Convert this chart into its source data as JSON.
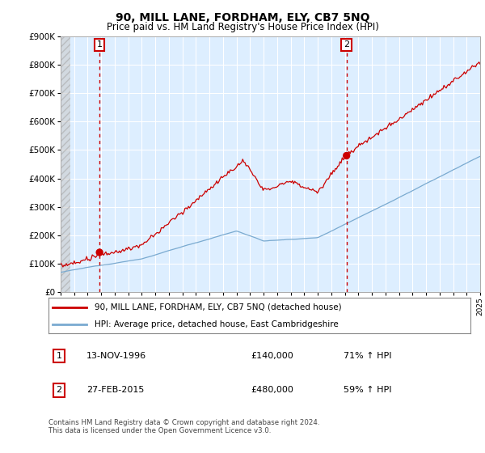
{
  "title": "90, MILL LANE, FORDHAM, ELY, CB7 5NQ",
  "subtitle": "Price paid vs. HM Land Registry's House Price Index (HPI)",
  "title_fontsize": 10,
  "subtitle_fontsize": 8.5,
  "background_color": "#ffffff",
  "plot_bg_color": "#ddeeff",
  "grid_color": "#ffffff",
  "line_color_red": "#cc0000",
  "line_color_blue": "#7aaad0",
  "sale1_x": 1996.875,
  "sale1_price": 140000,
  "sale2_x": 2015.125,
  "sale2_price": 480000,
  "ylim": [
    0,
    900000
  ],
  "yticks": [
    0,
    100000,
    200000,
    300000,
    400000,
    500000,
    600000,
    700000,
    800000,
    900000
  ],
  "ytick_labels": [
    "£0",
    "£100K",
    "£200K",
    "£300K",
    "£400K",
    "£500K",
    "£600K",
    "£700K",
    "£800K",
    "£900K"
  ],
  "legend_label_red": "90, MILL LANE, FORDHAM, ELY, CB7 5NQ (detached house)",
  "legend_label_blue": "HPI: Average price, detached house, East Cambridgeshire",
  "table_row1": [
    "1",
    "13-NOV-1996",
    "£140,000",
    "71% ↑ HPI"
  ],
  "table_row2": [
    "2",
    "27-FEB-2015",
    "£480,000",
    "59% ↑ HPI"
  ],
  "footnote": "Contains HM Land Registry data © Crown copyright and database right 2024.\nThis data is licensed under the Open Government Licence v3.0.",
  "xstart": 1994,
  "xend": 2025
}
